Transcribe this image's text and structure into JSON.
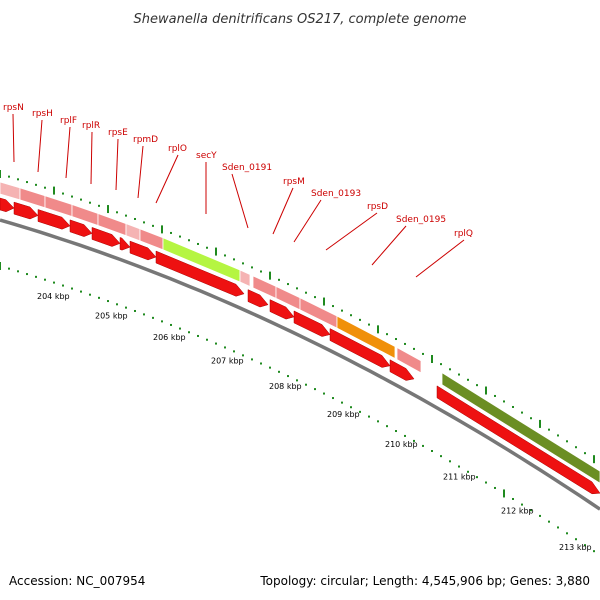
{
  "title": "Shewanella denitrificans OS217, complete genome",
  "footer": {
    "accession": "Accession: NC_007954",
    "summary": "Topology: circular; Length: 4,545,906 bp; Genes: 3,880"
  },
  "colors": {
    "gene_label": "#cc0000",
    "backbone": "#888888",
    "tick": "#1f8a1f",
    "feature_pink": "#f08a8a",
    "feature_pink_light": "#f5b3b3",
    "secY": "#b5f542",
    "sden_0193": "#f0900a",
    "olive": "#6b8e23",
    "cds_red": "#ee1111"
  },
  "gene_labels": [
    "rpsN",
    "rpsH",
    "rplF",
    "rplR",
    "rpsE",
    "rpmD",
    "rplO",
    "secY",
    "Sden_0191",
    "rpsM",
    "Sden_0193",
    "rpsD",
    "Sden_0195",
    "rplQ"
  ],
  "kbp_labels": [
    "204 kbp",
    "205 kbp",
    "206 kbp",
    "207 kbp",
    "208 kbp",
    "209 kbp",
    "210 kbp",
    "211 kbp",
    "212 kbp",
    "213 kbp"
  ]
}
